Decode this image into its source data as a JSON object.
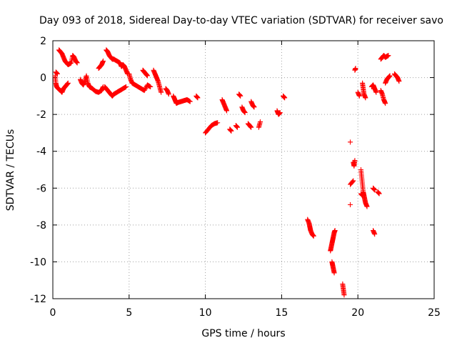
{
  "chart_data": {
    "type": "scatter",
    "title": "Day 093 of 2018, Sidereal Day-to-day VTEC variation (SDTVAR) for receiver savo",
    "xlabel": "GPS time / hours",
    "ylabel": "SDTVAR / TECUs",
    "xlim": [
      0,
      25
    ],
    "ylim": [
      -12,
      2
    ],
    "xticks": [
      0,
      5,
      10,
      15,
      20,
      25
    ],
    "yticks": [
      -12,
      -10,
      -8,
      -6,
      -4,
      -2,
      0,
      2
    ],
    "grid": true,
    "marker": "+",
    "color": "#ff0000",
    "series": [
      {
        "name": "SDTVAR",
        "segments": [
          [
            [
              0.15,
              0.1
            ],
            [
              0.2,
              -0.3
            ],
            [
              0.25,
              -0.5
            ],
            [
              0.35,
              -0.6
            ],
            [
              0.5,
              -0.7
            ],
            [
              0.6,
              -0.8
            ],
            [
              0.7,
              -0.6
            ],
            [
              0.8,
              -0.5
            ],
            [
              0.9,
              -0.4
            ],
            [
              1.0,
              -0.3
            ]
          ],
          [
            [
              0.2,
              0.3
            ],
            [
              0.3,
              0.2
            ]
          ],
          [
            [
              0.4,
              1.5
            ],
            [
              0.5,
              1.4
            ],
            [
              0.6,
              1.3
            ],
            [
              0.7,
              1.1
            ],
            [
              0.8,
              0.9
            ],
            [
              0.9,
              0.8
            ],
            [
              1.0,
              0.7
            ],
            [
              1.1,
              0.75
            ],
            [
              1.2,
              0.8
            ],
            [
              1.3,
              1.2
            ],
            [
              1.4,
              1.1
            ],
            [
              1.5,
              0.9
            ],
            [
              1.6,
              0.8
            ]
          ],
          [
            [
              1.8,
              -0.1
            ],
            [
              1.9,
              -0.3
            ],
            [
              2.0,
              -0.4
            ],
            [
              2.1,
              -0.2
            ],
            [
              2.2,
              0.1
            ],
            [
              2.3,
              -0.3
            ],
            [
              2.4,
              -0.5
            ],
            [
              2.6,
              -0.6
            ],
            [
              2.8,
              -0.75
            ],
            [
              3.0,
              -0.8
            ],
            [
              3.2,
              -0.7
            ],
            [
              3.3,
              -0.5
            ]
          ],
          [
            [
              3.0,
              0.5
            ],
            [
              3.1,
              0.6
            ],
            [
              3.2,
              0.7
            ],
            [
              3.3,
              0.9
            ]
          ],
          [
            [
              3.5,
              1.5
            ],
            [
              3.6,
              1.4
            ],
            [
              3.7,
              1.2
            ],
            [
              3.8,
              1.1
            ],
            [
              3.9,
              1.0
            ],
            [
              4.0,
              1.0
            ],
            [
              4.2,
              0.9
            ],
            [
              4.4,
              0.8
            ],
            [
              4.5,
              0.6
            ],
            [
              4.6,
              0.7
            ],
            [
              4.7,
              0.6
            ],
            [
              4.8,
              0.4
            ],
            [
              4.9,
              0.2
            ]
          ],
          [
            [
              3.4,
              -0.5
            ],
            [
              3.5,
              -0.6
            ],
            [
              3.6,
              -0.7
            ],
            [
              3.7,
              -0.8
            ],
            [
              3.8,
              -0.9
            ],
            [
              3.9,
              -1.0
            ],
            [
              4.0,
              -0.9
            ],
            [
              4.2,
              -0.8
            ],
            [
              4.4,
              -0.7
            ],
            [
              4.6,
              -0.6
            ],
            [
              4.8,
              -0.5
            ]
          ],
          [
            [
              5.0,
              0.2
            ],
            [
              5.1,
              -0.1
            ],
            [
              5.2,
              -0.3
            ],
            [
              5.4,
              -0.4
            ],
            [
              5.6,
              -0.5
            ],
            [
              5.8,
              -0.6
            ],
            [
              6.0,
              -0.7
            ],
            [
              6.2,
              -0.4
            ],
            [
              6.4,
              -0.5
            ]
          ],
          [
            [
              5.9,
              0.4
            ],
            [
              6.0,
              0.3
            ],
            [
              6.1,
              0.2
            ],
            [
              6.2,
              0.1
            ]
          ],
          [
            [
              6.6,
              0.4
            ],
            [
              6.7,
              0.2
            ],
            [
              6.8,
              0.0
            ],
            [
              6.9,
              -0.2
            ],
            [
              7.0,
              -0.5
            ],
            [
              7.1,
              -0.8
            ]
          ],
          [
            [
              7.4,
              -0.6
            ],
            [
              7.5,
              -0.7
            ],
            [
              7.6,
              -0.9
            ]
          ],
          [
            [
              7.9,
              -1.0
            ],
            [
              8.0,
              -1.2
            ],
            [
              8.1,
              -1.4
            ],
            [
              8.2,
              -1.35
            ],
            [
              8.4,
              -1.3
            ],
            [
              8.6,
              -1.25
            ],
            [
              8.8,
              -1.2
            ],
            [
              9.0,
              -1.3
            ]
          ],
          [
            [
              9.4,
              -1.0
            ],
            [
              9.5,
              -1.1
            ]
          ],
          [
            [
              10.0,
              -3.0
            ],
            [
              10.2,
              -2.8
            ],
            [
              10.4,
              -2.6
            ],
            [
              10.6,
              -2.5
            ],
            [
              10.8,
              -2.45
            ]
          ],
          [
            [
              11.1,
              -1.2
            ],
            [
              11.2,
              -1.4
            ],
            [
              11.3,
              -1.6
            ],
            [
              11.4,
              -1.8
            ]
          ],
          [
            [
              11.6,
              -2.8
            ],
            [
              11.7,
              -2.9
            ]
          ],
          [
            [
              12.0,
              -2.6
            ],
            [
              12.1,
              -2.7
            ]
          ],
          [
            [
              12.2,
              -0.9
            ],
            [
              12.3,
              -1.0
            ]
          ],
          [
            [
              12.4,
              -1.6
            ],
            [
              12.5,
              -1.8
            ],
            [
              12.6,
              -1.9
            ]
          ],
          [
            [
              12.8,
              -2.5
            ],
            [
              12.9,
              -2.6
            ],
            [
              13.0,
              -2.7
            ]
          ],
          [
            [
              13.0,
              -1.3
            ],
            [
              13.1,
              -1.5
            ],
            [
              13.2,
              -1.6
            ]
          ],
          [
            [
              13.5,
              -2.7
            ],
            [
              13.6,
              -2.4
            ]
          ],
          [
            [
              14.7,
              -1.8
            ],
            [
              14.8,
              -2.0
            ],
            [
              14.9,
              -1.9
            ]
          ],
          [
            [
              15.1,
              -1.0
            ],
            [
              15.2,
              -1.1
            ]
          ],
          [
            [
              16.7,
              -7.7
            ],
            [
              16.8,
              -7.9
            ],
            [
              16.85,
              -8.1
            ],
            [
              16.9,
              -8.3
            ],
            [
              17.0,
              -8.5
            ],
            [
              17.1,
              -8.6
            ]
          ],
          [
            [
              18.2,
              -9.4
            ],
            [
              18.25,
              -9.2
            ],
            [
              18.3,
              -9.0
            ],
            [
              18.35,
              -8.8
            ],
            [
              18.4,
              -8.6
            ],
            [
              18.45,
              -8.4
            ],
            [
              18.5,
              -8.3
            ]
          ],
          [
            [
              18.3,
              -10.0
            ],
            [
              18.35,
              -10.2
            ],
            [
              18.4,
              -10.4
            ],
            [
              18.45,
              -10.6
            ]
          ],
          [
            [
              19.0,
              -11.2
            ],
            [
              19.05,
              -11.5
            ],
            [
              19.1,
              -11.8
            ]
          ],
          [
            [
              19.5,
              -3.5
            ]
          ],
          [
            [
              19.5,
              -5.8
            ],
            [
              19.7,
              -5.6
            ]
          ],
          [
            [
              19.5,
              -6.9
            ]
          ],
          [
            [
              19.7,
              -4.6
            ],
            [
              19.75,
              -4.8
            ],
            [
              19.8,
              -4.5
            ]
          ],
          [
            [
              19.8,
              0.4
            ],
            [
              19.85,
              0.5
            ]
          ],
          [
            [
              20.0,
              -0.8
            ],
            [
              20.1,
              -1.0
            ]
          ],
          [
            [
              20.2,
              -5.0
            ],
            [
              20.25,
              -5.4
            ],
            [
              20.3,
              -5.8
            ],
            [
              20.35,
              -6.2
            ],
            [
              20.4,
              -6.4
            ],
            [
              20.45,
              -6.6
            ],
            [
              20.5,
              -6.8
            ],
            [
              20.6,
              -7.0
            ]
          ],
          [
            [
              20.2,
              -6.3
            ],
            [
              20.3,
              -6.4
            ]
          ],
          [
            [
              20.3,
              -0.3
            ],
            [
              20.35,
              -0.6
            ],
            [
              20.4,
              -0.9
            ],
            [
              20.5,
              -1.1
            ]
          ],
          [
            [
              20.9,
              -0.5
            ],
            [
              21.0,
              -0.4
            ],
            [
              21.1,
              -0.6
            ],
            [
              21.2,
              -0.8
            ]
          ],
          [
            [
              21.0,
              -6.0
            ],
            [
              21.1,
              -6.1
            ]
          ],
          [
            [
              21.0,
              -8.3
            ],
            [
              21.1,
              -8.5
            ]
          ],
          [
            [
              21.3,
              -6.2
            ],
            [
              21.4,
              -6.3
            ]
          ],
          [
            [
              21.5,
              -0.7
            ],
            [
              21.6,
              -0.9
            ],
            [
              21.7,
              -1.2
            ],
            [
              21.8,
              -1.4
            ]
          ],
          [
            [
              21.5,
              1.0
            ],
            [
              21.6,
              1.1
            ],
            [
              21.7,
              1.2
            ],
            [
              21.8,
              1.1
            ],
            [
              21.9,
              1.15
            ],
            [
              22.0,
              1.2
            ]
          ],
          [
            [
              21.8,
              -0.3
            ],
            [
              21.9,
              -0.1
            ],
            [
              22.0,
              0.0
            ],
            [
              22.1,
              0.1
            ]
          ],
          [
            [
              22.4,
              0.2
            ],
            [
              22.5,
              0.1
            ],
            [
              22.6,
              0.0
            ],
            [
              22.7,
              -0.2
            ]
          ]
        ]
      }
    ]
  }
}
